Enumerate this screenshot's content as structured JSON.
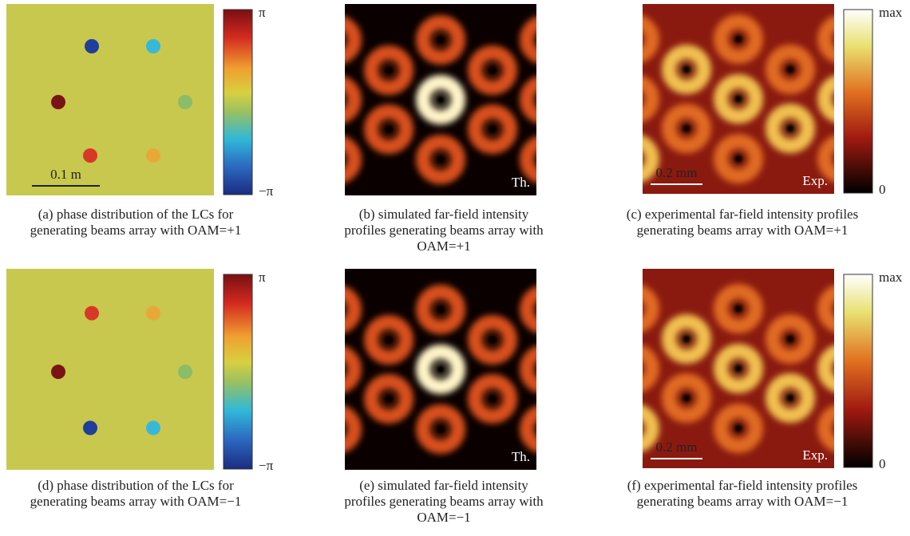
{
  "panels": [
    {
      "caption": [
        "(a) phase distribution of the LCs for",
        "generating beams array with OAM=+1"
      ],
      "colorbar": {
        "top": "π",
        "bottom": "−π"
      },
      "scale_bar": "0.1 m"
    },
    {
      "caption": [
        "(b) simulated far-field intensity",
        "profiles generating beams array with",
        "OAM=+1"
      ],
      "tag": "Th."
    },
    {
      "caption": [
        "(c) experimental far-field intensity profiles",
        "generating beams array with OAM=+1"
      ],
      "colorbar": {
        "top": "max",
        "bottom": "0"
      },
      "scale_bar": "0.2 mm",
      "tag": "Exp."
    },
    {
      "caption": [
        "(d) phase distribution of the LCs for",
        "generating beams array with OAM=−1"
      ],
      "colorbar": {
        "top": "π",
        "bottom": "−π"
      }
    },
    {
      "caption": [
        "(e) simulated far-field intensity",
        "profiles generating beams array with",
        "OAM=−1"
      ],
      "tag": "Th."
    },
    {
      "caption": [
        "(f) experimental far-field intensity profiles",
        "generating beams array with OAM=−1"
      ],
      "colorbar": {
        "top": "max",
        "bottom": "0"
      },
      "scale_bar": "0.2 mm",
      "tag": "Exp."
    }
  ]
}
